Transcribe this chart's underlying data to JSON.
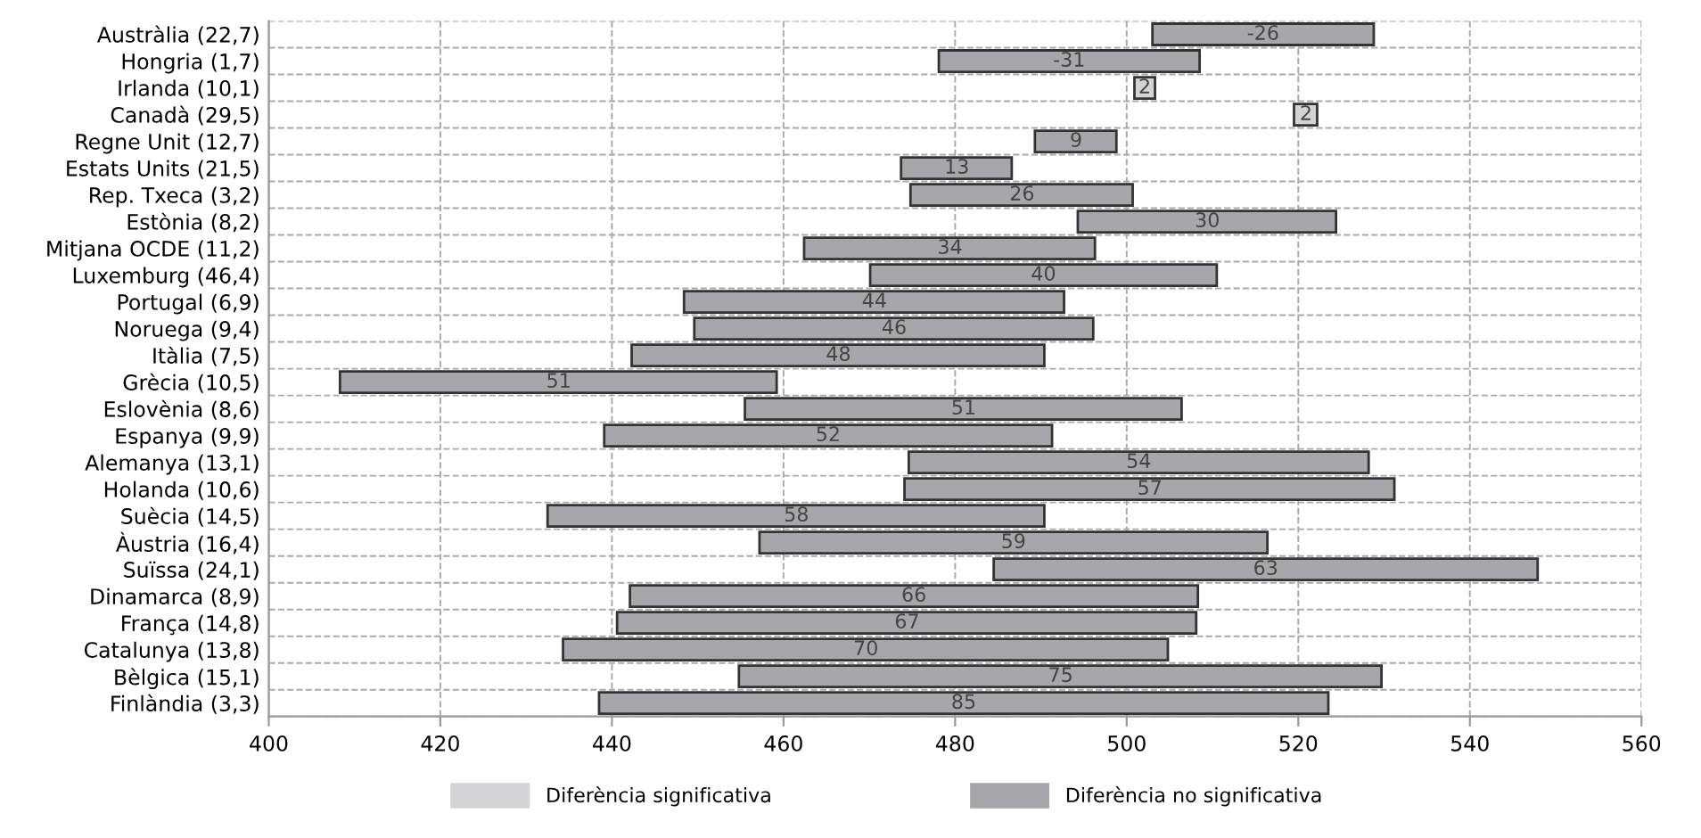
{
  "chart_data": {
    "type": "bar",
    "orientation": "horizontal",
    "categories": [
      "Austràlia (22,7)",
      "Hongria (1,7)",
      "Irlanda (10,1)",
      "Canadà (29,5)",
      "Regne Unit (12,7)",
      "Estats Units (21,5)",
      "Rep. Txeca (3,2)",
      "Estònia (8,2)",
      "Mitjana OCDE (11,2)",
      "Luxemburg (46,4)",
      "Portugal (6,9)",
      "Noruega (9,4)",
      "Itàlia (7,5)",
      "Grècia (10,5)",
      "Eslovènia (8,6)",
      "Espanya (9,9)",
      "Alemanya (13,1)",
      "Holanda (10,6)",
      "Suècia (14,5)",
      "Àustria (16,4)",
      "Suïssa (24,1)",
      "Dinamarca (8,9)",
      "França (14,8)",
      "Catalunya (13,8)",
      "Bèlgica (15,1)",
      "Finlàndia (3,3)"
    ],
    "series": [
      {
        "name": "Diferència significativa",
        "color": "#d4d4d6",
        "base": [
          null,
          null,
          500.9,
          519.5,
          null,
          null,
          null,
          null,
          null,
          null,
          null,
          null,
          null,
          null,
          null,
          null,
          null,
          null,
          null,
          null,
          null,
          null,
          null,
          null,
          null,
          null
        ],
        "values": [
          null,
          null,
          2.4,
          2.7,
          null,
          null,
          null,
          null,
          null,
          null,
          null,
          null,
          null,
          null,
          null,
          null,
          null,
          null,
          null,
          null,
          null,
          null,
          null,
          null,
          null,
          null
        ]
      },
      {
        "name": "Diferència no significativa",
        "color": "#a7a7ab",
        "base": [
          503.0,
          478.1,
          null,
          null,
          489.3,
          473.7,
          474.8,
          494.3,
          462.4,
          470.1,
          448.4,
          449.6,
          442.3,
          408.3,
          455.5,
          439.1,
          474.6,
          474.1,
          432.5,
          457.2,
          484.5,
          442.1,
          440.6,
          434.3,
          454.8,
          438.5
        ],
        "values": [
          25.8,
          30.4,
          null,
          null,
          9.5,
          12.9,
          25.9,
          30.1,
          33.9,
          40.4,
          44.3,
          46.5,
          48.1,
          50.9,
          50.9,
          52.2,
          53.6,
          57.1,
          57.9,
          59.2,
          63.4,
          66.2,
          67.5,
          70.5,
          74.9,
          85.0
        ]
      }
    ],
    "annotations": [
      {
        "text": "-26",
        "x": 515.9,
        "y": "Austràlia (22,7)"
      },
      {
        "text": "-31",
        "x": 493.3,
        "y": "Hongria (1,7)"
      },
      {
        "text": "2",
        "x": 502.1,
        "y": "Irlanda (10,1)"
      },
      {
        "text": "2",
        "x": 520.9,
        "y": "Canadà (29,5)"
      },
      {
        "text": "9",
        "x": 494.1,
        "y": "Regne Unit (12,7)"
      },
      {
        "text": "13",
        "x": 480.2,
        "y": "Estats Units (21,5)"
      },
      {
        "text": "26",
        "x": 487.8,
        "y": "Rep. Txeca (3,2)"
      },
      {
        "text": "30",
        "x": 509.4,
        "y": "Estònia (8,2)"
      },
      {
        "text": "34",
        "x": 479.4,
        "y": "Mitjana OCDE (11,2)"
      },
      {
        "text": "40",
        "x": 490.3,
        "y": "Luxemburg (46,4)"
      },
      {
        "text": "44",
        "x": 470.6,
        "y": "Portugal (6,9)"
      },
      {
        "text": "46",
        "x": 472.9,
        "y": "Noruega (9,4)"
      },
      {
        "text": "48",
        "x": 466.4,
        "y": "Itàlia (7,5)"
      },
      {
        "text": "51",
        "x": 433.8,
        "y": "Grècia (10,5)"
      },
      {
        "text": "51",
        "x": 481.0,
        "y": "Eslovènia (8,6)"
      },
      {
        "text": "52",
        "x": 465.2,
        "y": "Espanya (9,9)"
      },
      {
        "text": "54",
        "x": 501.4,
        "y": "Alemanya (13,1)"
      },
      {
        "text": "57",
        "x": 502.7,
        "y": "Holanda (10,6)"
      },
      {
        "text": "58",
        "x": 461.5,
        "y": "Suècia (14,5)"
      },
      {
        "text": "59",
        "x": 486.8,
        "y": "Àustria (16,4)"
      },
      {
        "text": "63",
        "x": 516.2,
        "y": "Suïssa (24,1)"
      },
      {
        "text": "66",
        "x": 475.2,
        "y": "Dinamarca (8,9)"
      },
      {
        "text": "67",
        "x": 474.4,
        "y": "França (14,8)"
      },
      {
        "text": "70",
        "x": 469.6,
        "y": "Catalunya (13,8)"
      },
      {
        "text": "75",
        "x": 492.3,
        "y": "Bèlgica (15,1)"
      },
      {
        "text": "85",
        "x": 481.0,
        "y": "Finlàndia (3,3)"
      }
    ],
    "xlim": [
      400,
      560
    ],
    "xticks": [
      400,
      420,
      440,
      460,
      480,
      500,
      520,
      540,
      560
    ],
    "grid": true,
    "legend": "bottom"
  }
}
